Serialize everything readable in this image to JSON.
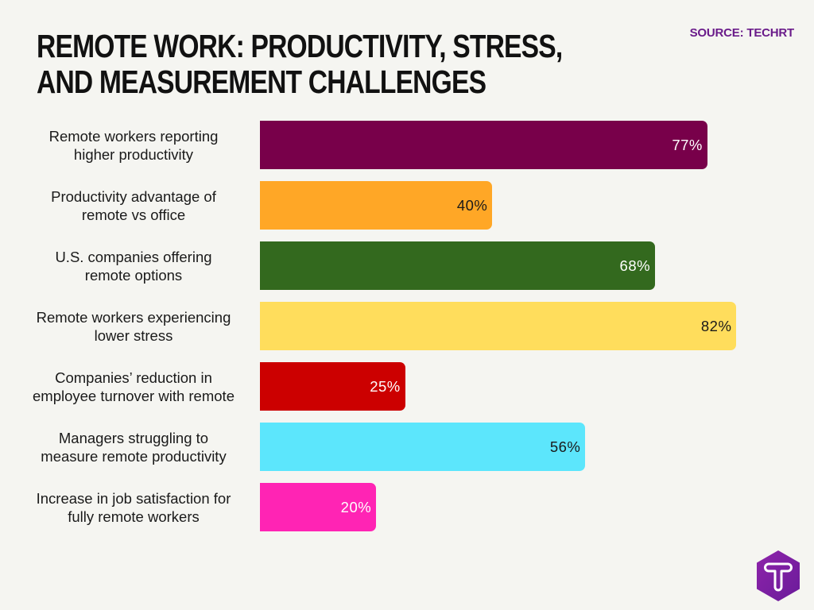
{
  "header": {
    "title": "REMOTE WORK: PRODUCTIVITY, STRESS, AND MEASUREMENT CHALLENGES",
    "source": "SOURCE: TECHRT"
  },
  "logo": {
    "icon": "techrt-hexagon-t-icon",
    "color": "#7b1fa2"
  },
  "chart_data": {
    "type": "bar",
    "orientation": "horizontal",
    "title": "REMOTE WORK: PRODUCTIVITY, STRESS, AND MEASUREMENT CHALLENGES",
    "source": "SOURCE: TECHRT",
    "xlabel": "",
    "ylabel": "",
    "xlim": [
      0,
      100
    ],
    "grid": false,
    "legend": "none",
    "categories": [
      "Remote workers reporting higher productivity",
      "Productivity advantage of remote vs office",
      "U.S. companies offering remote options",
      "Remote workers experiencing lower stress",
      "Companies’ reduction in employee turnover with remote",
      "Managers struggling to measure remote productivity",
      "Increase in job satisfaction for fully remote workers"
    ],
    "values": [
      77,
      40,
      68,
      82,
      25,
      56,
      20
    ],
    "unit": "%",
    "bars": [
      {
        "label_line1": "Remote workers reporting",
        "label_line2": "higher productivity",
        "value": 77,
        "display": "77%",
        "color": "#78004a",
        "text_color": "#ffffff"
      },
      {
        "label_line1": "Productivity advantage of",
        "label_line2": "remote vs office",
        "value": 40,
        "display": "40%",
        "color": "#ffa726",
        "text_color": "#1a1a1a"
      },
      {
        "label_line1": "U.S. companies offering",
        "label_line2": "remote options",
        "value": 68,
        "display": "68%",
        "color": "#33691e",
        "text_color": "#ffffff"
      },
      {
        "label_line1": "Remote workers experiencing",
        "label_line2": "lower stress",
        "value": 82,
        "display": "82%",
        "color": "#ffdd5c",
        "text_color": "#1a1a1a"
      },
      {
        "label_line1": "Companies’ reduction in",
        "label_line2": "employee turnover with remote",
        "value": 25,
        "display": "25%",
        "color": "#cc0000",
        "text_color": "#ffffff"
      },
      {
        "label_line1": "Managers struggling to",
        "label_line2": "measure remote productivity",
        "value": 56,
        "display": "56%",
        "color": "#5ce6fc",
        "text_color": "#1a1a1a"
      },
      {
        "label_line1": "Increase in job satisfaction for",
        "label_line2": "fully remote workers",
        "value": 20,
        "display": "20%",
        "color": "#ff24b4",
        "text_color": "#ffffff"
      }
    ]
  }
}
